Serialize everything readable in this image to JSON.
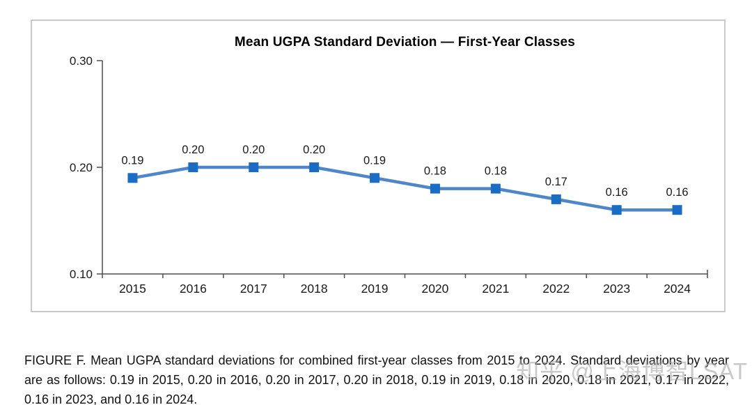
{
  "chart_data": {
    "type": "line",
    "title": "Mean UGPA Standard Deviation — First-Year Classes",
    "categories": [
      "2015",
      "2016",
      "2017",
      "2018",
      "2019",
      "2020",
      "2021",
      "2022",
      "2023",
      "2024"
    ],
    "values": [
      0.19,
      0.2,
      0.2,
      0.2,
      0.19,
      0.18,
      0.18,
      0.17,
      0.16,
      0.16
    ],
    "data_labels": [
      "0.19",
      "0.20",
      "0.20",
      "0.20",
      "0.19",
      "0.18",
      "0.18",
      "0.17",
      "0.16",
      "0.16"
    ],
    "xlabel": "",
    "ylabel": "",
    "ylim": [
      0.1,
      0.3
    ],
    "yticks": [
      0.3,
      0.2,
      0.1
    ],
    "ytick_labels": [
      "0.30",
      "0.20",
      "0.10"
    ],
    "grid": false,
    "legend_position": "none",
    "line_color": "#4f86c8",
    "marker_color": "#1b6cc4",
    "marker_shape": "square",
    "axis_color": "#4d4d4d",
    "label_color": "#1a1a1a"
  },
  "caption": {
    "text": "FIGURE F. Mean UGPA standard deviations for combined first-year classes from 2015 to 2024. Standard deviations by year are as follows: 0.19 in 2015, 0.20 in 2016, 0.20 in 2017, 0.20 in 2018, 0.19 in 2019, 0.18 in 2020, 0.18 in 2021, 0.17 in 2022, 0.16 in 2023, and 0.16 in 2024."
  },
  "watermark": {
    "text": "知乎 @上海博智LSAT"
  }
}
